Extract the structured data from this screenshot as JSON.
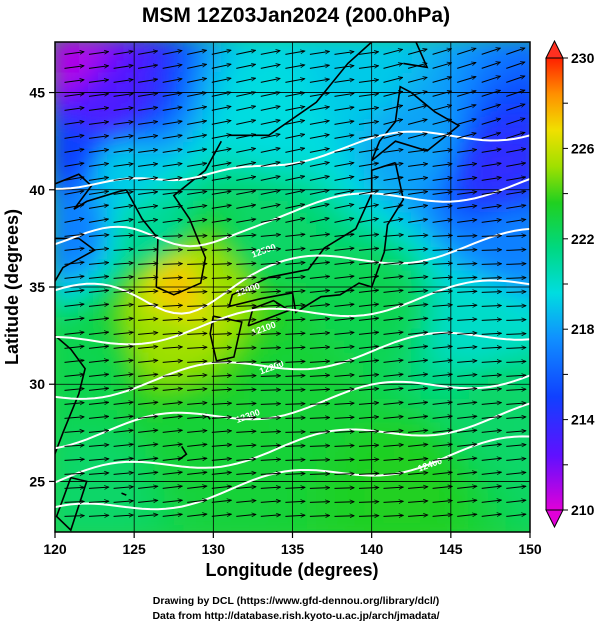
{
  "chart_data": {
    "type": "heatmap",
    "title": "MSM 12Z03Jan2024 (200.0hPa)",
    "xlabel": "Longitude (degrees)",
    "ylabel": "Latitude  (degrees)",
    "xlim": [
      120,
      150
    ],
    "ylim": [
      22.4,
      47.6
    ],
    "x_ticks": [
      "120",
      "125",
      "130",
      "135",
      "140",
      "145",
      "150"
    ],
    "y_ticks": [
      "25",
      "30",
      "35",
      "40",
      "45"
    ],
    "colorbar": {
      "min": 210,
      "max": 230,
      "labels": [
        "230",
        "226",
        "222",
        "218",
        "214",
        "210"
      ],
      "label_values": [
        230,
        226,
        222,
        218,
        214,
        210
      ]
    },
    "field_points": [
      {
        "lon": 121,
        "lat": 46.5,
        "value": 211
      },
      {
        "lon": 123,
        "lat": 44.5,
        "value": 213
      },
      {
        "lon": 121,
        "lat": 42,
        "value": 215
      },
      {
        "lon": 124,
        "lat": 41,
        "value": 219
      },
      {
        "lon": 121,
        "lat": 38,
        "value": 217
      },
      {
        "lon": 126,
        "lat": 38,
        "value": 221
      },
      {
        "lon": 128,
        "lat": 35,
        "value": 227.5
      },
      {
        "lon": 130,
        "lat": 35.5,
        "value": 225
      },
      {
        "lon": 127,
        "lat": 32.5,
        "value": 225
      },
      {
        "lon": 133,
        "lat": 37.5,
        "value": 222
      },
      {
        "lon": 134,
        "lat": 44,
        "value": 219.5
      },
      {
        "lon": 139,
        "lat": 46,
        "value": 219
      },
      {
        "lon": 143,
        "lat": 42.5,
        "value": 218
      },
      {
        "lon": 148,
        "lat": 41,
        "value": 214
      },
      {
        "lon": 149,
        "lat": 37.5,
        "value": 217
      },
      {
        "lon": 147,
        "lat": 33,
        "value": 220
      },
      {
        "lon": 148,
        "lat": 29,
        "value": 222
      },
      {
        "lon": 140,
        "lat": 34,
        "value": 222.5
      },
      {
        "lon": 135,
        "lat": 30,
        "value": 223
      },
      {
        "lon": 129,
        "lat": 27,
        "value": 223
      },
      {
        "lon": 122,
        "lat": 31,
        "value": 222.5
      },
      {
        "lon": 142,
        "lat": 25,
        "value": 223.5
      },
      {
        "lon": 123,
        "lat": 25,
        "value": 222
      }
    ],
    "contour_labels": [
      "12000",
      "12100",
      "12200",
      "12300",
      "12400",
      "12500"
    ],
    "grid": true,
    "wind_vectors": "eastward streamlines"
  },
  "credits": {
    "line1": "Drawing by DCL (https://www.gfd-dennou.org/library/dcl/)",
    "line2": "Data from http://database.rish.kyoto-u.ac.jp/arch/jmadata/"
  },
  "colors": {
    "magenta": "#e000e0",
    "blue": "#1040ff",
    "cyan": "#00e0e0",
    "green": "#20d020",
    "yellow": "#e0e000",
    "orange": "#ff8000",
    "red": "#ff2000"
  }
}
